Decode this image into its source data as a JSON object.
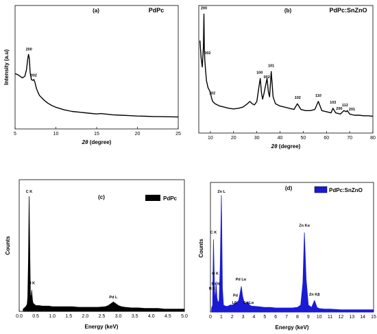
{
  "chart_data": [
    {
      "type": "line",
      "panel_label": "(a)",
      "sample_label": "PdPc",
      "xlabel_sym": "2θ",
      "xlabel_unit": " (degree)",
      "ylabel": "Intensity (a.u)",
      "xlim": [
        5,
        25
      ],
      "xticks": [
        5,
        10,
        15,
        20,
        25
      ],
      "ylim": [
        0,
        100
      ],
      "grid": false,
      "x": [
        5,
        5.3,
        5.6,
        5.9,
        6.2,
        6.4,
        6.55,
        6.65,
        6.75,
        6.85,
        7.0,
        7.15,
        7.3,
        7.45,
        7.6,
        7.8,
        8.0,
        8.5,
        9,
        9.5,
        10,
        11,
        12,
        13,
        14,
        15,
        15.5,
        16,
        16.5,
        17,
        18,
        19,
        20,
        21,
        22,
        23,
        24,
        25
      ],
      "y": [
        57,
        56,
        54,
        52,
        54,
        62,
        74,
        80,
        75,
        58,
        50,
        49,
        50,
        46,
        40,
        35,
        31,
        26,
        22,
        19,
        17,
        14,
        12,
        11,
        10,
        9,
        9.5,
        9,
        8.5,
        8,
        7.5,
        7,
        6.5,
        6.3,
        6,
        5.8,
        5.6,
        5.4
      ],
      "annotations": [
        {
          "x": 6.7,
          "y": 83,
          "text": "200"
        },
        {
          "x": 7.3,
          "y": 52,
          "text": "002"
        }
      ]
    },
    {
      "type": "line",
      "panel_label": "(b)",
      "sample_label": "PdPc:SnZnO",
      "xlabel_sym": "2θ",
      "xlabel_unit": " (degree)",
      "ylabel": "",
      "xlim": [
        5,
        80
      ],
      "xticks": [
        10,
        20,
        30,
        40,
        50,
        60,
        70,
        80
      ],
      "ylim": [
        0,
        100
      ],
      "grid": false,
      "x": [
        5.5,
        6,
        6.5,
        7,
        7.2,
        7.4,
        7.6,
        7.9,
        8.3,
        9,
        10,
        10.5,
        11,
        12,
        14,
        16,
        18,
        20,
        22,
        24,
        26,
        27,
        28,
        29,
        30,
        31,
        31.5,
        32,
        32.5,
        33,
        34,
        34.4,
        35,
        35.5,
        36.2,
        37,
        38,
        40,
        42,
        44,
        46,
        47.5,
        49,
        51,
        53,
        55,
        56.5,
        58,
        60,
        62,
        62.8,
        64,
        66,
        67.5,
        68.5,
        69,
        70,
        72,
        74,
        76,
        78,
        80
      ],
      "y": [
        75,
        60,
        52,
        70,
        98,
        68,
        58,
        50,
        40,
        34,
        30,
        25,
        22,
        20,
        18,
        17,
        16,
        15.5,
        16,
        17,
        20,
        22,
        20,
        19,
        22,
        36,
        42,
        30,
        24,
        28,
        38,
        42,
        30,
        26,
        48,
        26,
        20,
        18,
        17,
        16,
        15,
        20,
        15,
        14,
        14,
        15,
        22,
        14,
        13,
        12,
        16,
        12,
        11,
        14,
        13,
        14,
        11,
        10,
        10,
        9.5,
        9.5,
        9
      ],
      "annotations": [
        {
          "x": 7.2,
          "y": 101,
          "text": "200"
        },
        {
          "x": 8.8,
          "y": 62,
          "text": "002"
        },
        {
          "x": 10.8,
          "y": 27,
          "text": "102"
        },
        {
          "x": 31.2,
          "y": 45,
          "text": "100"
        },
        {
          "x": 34.3,
          "y": 41,
          "text": "002"
        },
        {
          "x": 36.2,
          "y": 51,
          "text": "101"
        },
        {
          "x": 47.6,
          "y": 23,
          "text": "102"
        },
        {
          "x": 56.5,
          "y": 25,
          "text": "110"
        },
        {
          "x": 62.8,
          "y": 19,
          "text": "103"
        },
        {
          "x": 65.5,
          "y": 13.5,
          "text": "200"
        },
        {
          "x": 68,
          "y": 16.5,
          "text": "112"
        },
        {
          "x": 71,
          "y": 13,
          "text": "201"
        }
      ]
    },
    {
      "type": "bar",
      "panel_label": "(c)",
      "legend": "PdPc",
      "legend_placement": "top-right",
      "xlabel": "Energy (keV)",
      "ylabel": "Counts",
      "xlim": [
        0,
        5
      ],
      "xticks": [
        0.0,
        0.5,
        1.0,
        1.5,
        2.0,
        2.5,
        3.0,
        3.5,
        4.0,
        4.5,
        5.0
      ],
      "xtick_labels": [
        "0.0",
        "0.5",
        "1.0",
        "1.5",
        "2.0",
        "2.5",
        "3.0",
        "3.5",
        "4.0",
        "4.5",
        "5.0"
      ],
      "ylim": [
        0,
        100
      ],
      "color": "#000000",
      "x": [
        0.12,
        0.16,
        0.2,
        0.24,
        0.26,
        0.28,
        0.3,
        0.32,
        0.34,
        0.36,
        0.38,
        0.4,
        0.42,
        0.46,
        0.5,
        0.6,
        0.7,
        0.8,
        0.9,
        1.0,
        1.2,
        1.4,
        1.6,
        1.8,
        2.0,
        2.2,
        2.4,
        2.6,
        2.7,
        2.8,
        2.85,
        2.9,
        2.95,
        3.0,
        3.1,
        3.2,
        3.4,
        3.6,
        3.8,
        4.0,
        4.2,
        4.4,
        4.6,
        4.8,
        5.0
      ],
      "y": [
        2,
        3,
        4,
        6,
        12,
        45,
        98,
        55,
        14,
        12,
        18,
        10,
        7,
        6,
        5,
        5,
        4.5,
        4.5,
        4.5,
        4,
        4,
        4,
        4,
        3.5,
        3.5,
        3.5,
        3.5,
        4,
        5,
        7,
        8,
        7,
        6,
        5,
        4,
        3.5,
        3,
        3,
        2.5,
        2.5,
        2.5,
        2,
        2,
        2,
        2
      ],
      "annotations": [
        {
          "x": 0.3,
          "y": 100,
          "text": "C K"
        },
        {
          "x": 0.38,
          "y": 22,
          "text": "N K"
        },
        {
          "x": 2.85,
          "y": 10,
          "text": "Pd L"
        }
      ]
    },
    {
      "type": "bar",
      "panel_label": "(d)",
      "legend": "PdPc:SnZnO",
      "legend_placement": "top-right",
      "xlabel": "Energy (keV)",
      "ylabel": "Counts",
      "xlim": [
        0,
        15
      ],
      "xticks": [
        0,
        1,
        2,
        3,
        4,
        5,
        6,
        7,
        8,
        9,
        10,
        11,
        12,
        13,
        14,
        15
      ],
      "ylim": [
        0,
        100
      ],
      "color": "#1a1ad6",
      "x": [
        0.1,
        0.2,
        0.28,
        0.38,
        0.45,
        0.52,
        0.6,
        0.7,
        0.8,
        0.9,
        1.01,
        1.1,
        1.2,
        1.4,
        1.6,
        1.8,
        2.0,
        2.2,
        2.4,
        2.6,
        2.84,
        2.95,
        3.1,
        3.3,
        3.44,
        3.6,
        3.8,
        4.0,
        4.5,
        5.0,
        5.5,
        6.0,
        6.5,
        7.0,
        7.5,
        8.0,
        8.3,
        8.5,
        8.64,
        8.8,
        9.0,
        9.3,
        9.57,
        9.8,
        10.0,
        10.5,
        11,
        12,
        13,
        14,
        15
      ],
      "y": [
        3,
        6,
        62,
        18,
        10,
        26,
        12,
        8,
        10,
        40,
        100,
        20,
        6,
        5,
        5,
        6,
        6,
        7,
        8,
        10,
        22,
        14,
        8,
        7,
        9,
        6,
        5,
        5,
        4.5,
        4,
        4,
        3.5,
        3.5,
        3.5,
        3.5,
        4,
        6,
        25,
        68,
        28,
        6,
        4,
        10,
        4,
        3,
        2.5,
        2.5,
        2,
        2,
        2,
        2
      ],
      "annotations": [
        {
          "x": 1.01,
          "y": 101,
          "text": "Zn L"
        },
        {
          "x": 0.28,
          "y": 66,
          "text": "C K"
        },
        {
          "x": 0.45,
          "y": 31,
          "text": "O K"
        },
        {
          "x": 0.15,
          "y": 18,
          "text": "N K"
        },
        {
          "x": 0.5,
          "y": 22,
          "text": "Sn M"
        },
        {
          "x": 2.8,
          "y": 26,
          "text": "Pd Lα"
        },
        {
          "x": 2.3,
          "y": 12,
          "text": "Pd"
        },
        {
          "x": 2.2,
          "y": 6,
          "text": "Lβ"
        },
        {
          "x": 3.5,
          "y": 6,
          "text": "Sn Lα"
        },
        {
          "x": 8.64,
          "y": 72,
          "text": "Zn Kα"
        },
        {
          "x": 9.57,
          "y": 13,
          "text": "Zn Kβ"
        }
      ]
    }
  ]
}
